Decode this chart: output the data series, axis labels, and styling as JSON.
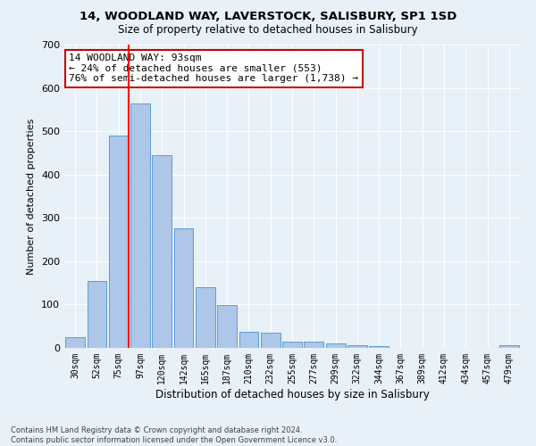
{
  "title1": "14, WOODLAND WAY, LAVERSTOCK, SALISBURY, SP1 1SD",
  "title2": "Size of property relative to detached houses in Salisbury",
  "xlabel": "Distribution of detached houses by size in Salisbury",
  "ylabel": "Number of detached properties",
  "categories": [
    "30sqm",
    "52sqm",
    "75sqm",
    "97sqm",
    "120sqm",
    "142sqm",
    "165sqm",
    "187sqm",
    "210sqm",
    "232sqm",
    "255sqm",
    "277sqm",
    "299sqm",
    "322sqm",
    "344sqm",
    "367sqm",
    "389sqm",
    "412sqm",
    "434sqm",
    "457sqm",
    "479sqm"
  ],
  "values": [
    25,
    155,
    490,
    565,
    445,
    275,
    140,
    98,
    37,
    36,
    15,
    15,
    11,
    6,
    5,
    1,
    1,
    1,
    0,
    0,
    6
  ],
  "bar_color": "#aec6e8",
  "bar_edge_color": "#5a9fd4",
  "background_color": "#e8f0f8",
  "grid_color": "#ffffff",
  "annotation_text": "14 WOODLAND WAY: 93sqm\n← 24% of detached houses are smaller (553)\n76% of semi-detached houses are larger (1,738) →",
  "annotation_box_color": "#ffffff",
  "annotation_box_edge_color": "#cc0000",
  "footer_text": "Contains HM Land Registry data © Crown copyright and database right 2024.\nContains public sector information licensed under the Open Government Licence v3.0.",
  "ylim": [
    0,
    700
  ],
  "yticks": [
    0,
    100,
    200,
    300,
    400,
    500,
    600,
    700
  ],
  "property_line_bar_index": 2,
  "annotation_line1_fontsize": 8.5,
  "title1_fontsize": 9.5,
  "title2_fontsize": 8.5
}
